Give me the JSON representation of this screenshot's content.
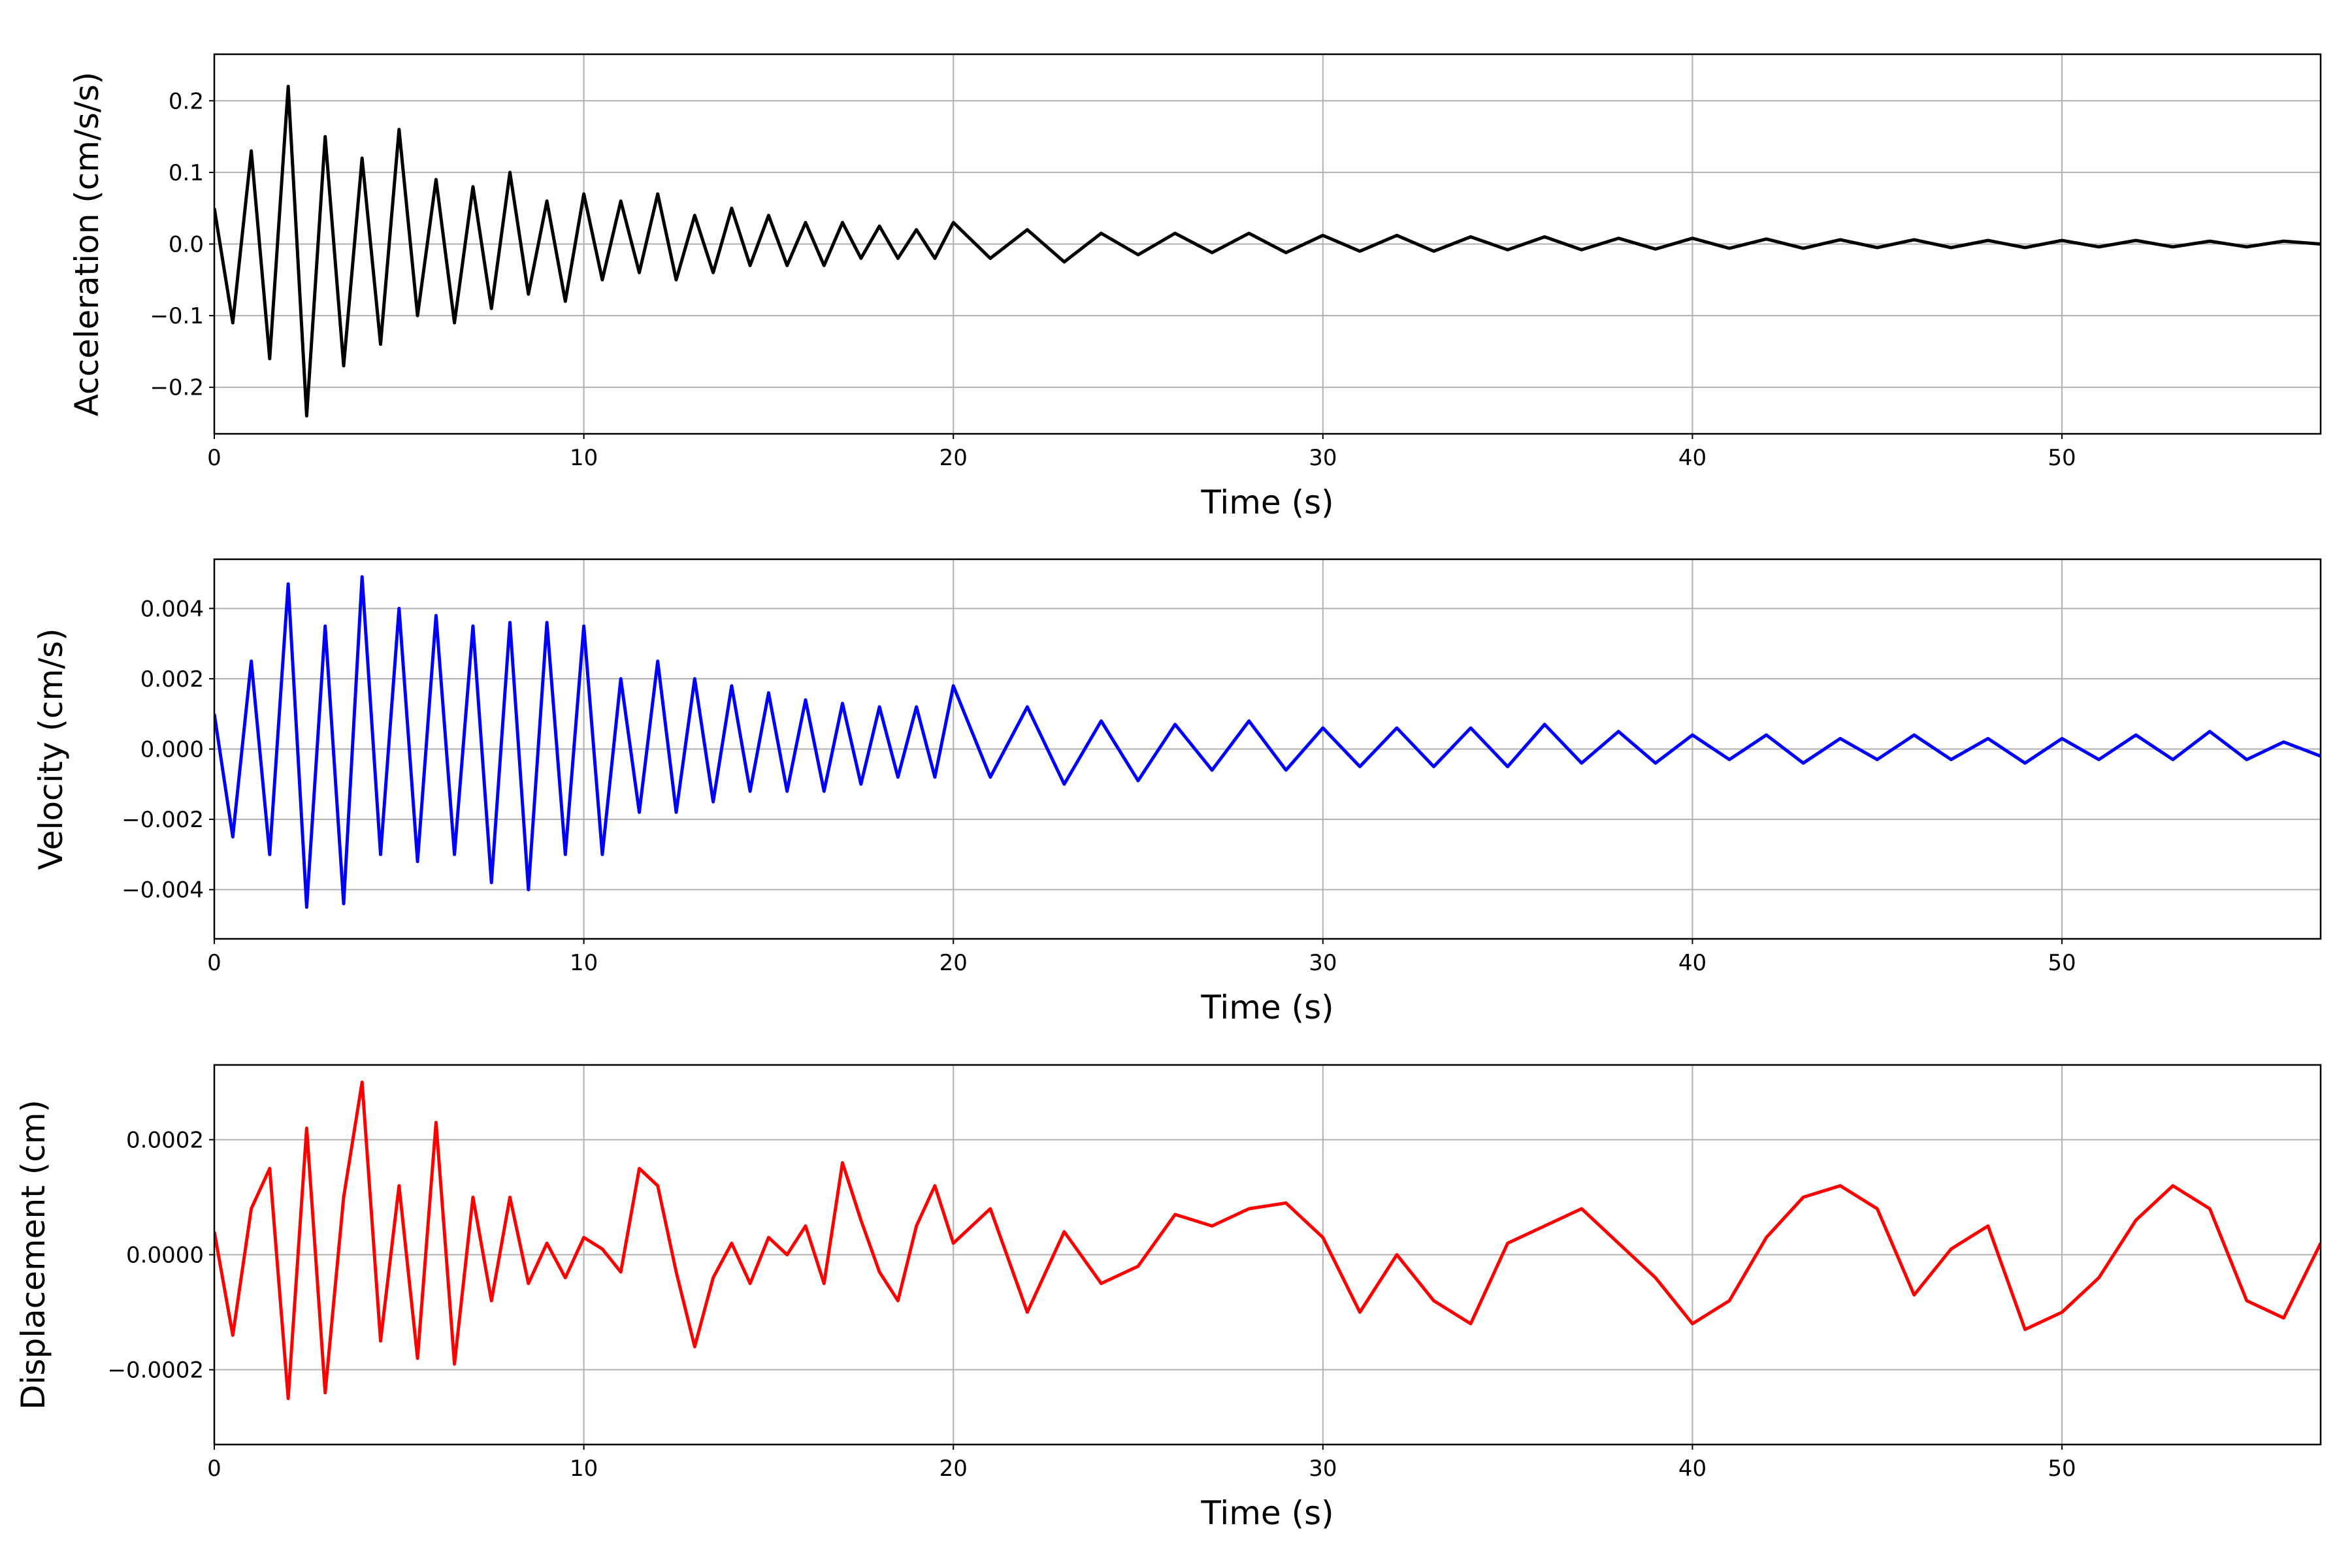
{
  "chart_data": [
    {
      "type": "line",
      "xlabel": "Time (s)",
      "ylabel": "Acceleration (cm/s/s)",
      "color": "#000000",
      "grid": true,
      "x": [
        0,
        0.5,
        1,
        1.5,
        2,
        2.5,
        3,
        3.5,
        4,
        4.5,
        5,
        5.5,
        6,
        6.5,
        7,
        7.5,
        8,
        8.5,
        9,
        9.5,
        10,
        10.5,
        11,
        11.5,
        12,
        12.5,
        13,
        13.5,
        14,
        14.5,
        15,
        15.5,
        16,
        16.5,
        17,
        17.5,
        18,
        18.5,
        19,
        19.5,
        20,
        21,
        22,
        23,
        24,
        25,
        26,
        27,
        28,
        29,
        30,
        31,
        32,
        33,
        34,
        35,
        36,
        37,
        38,
        39,
        40,
        41,
        42,
        43,
        44,
        45,
        46,
        47,
        48,
        49,
        50,
        51,
        52,
        53,
        54,
        55,
        56,
        57
      ],
      "values": [
        0.05,
        -0.11,
        0.13,
        -0.16,
        0.22,
        -0.24,
        0.15,
        -0.17,
        0.12,
        -0.14,
        0.16,
        -0.1,
        0.09,
        -0.11,
        0.08,
        -0.09,
        0.1,
        -0.07,
        0.06,
        -0.08,
        0.07,
        -0.05,
        0.06,
        -0.04,
        0.07,
        -0.05,
        0.04,
        -0.04,
        0.05,
        -0.03,
        0.04,
        -0.03,
        0.03,
        -0.03,
        0.03,
        -0.02,
        0.025,
        -0.02,
        0.02,
        -0.02,
        0.03,
        -0.02,
        0.02,
        -0.025,
        0.015,
        -0.015,
        0.015,
        -0.012,
        0.015,
        -0.012,
        0.012,
        -0.01,
        0.012,
        -0.01,
        0.01,
        -0.008,
        0.01,
        -0.008,
        0.008,
        -0.007,
        0.008,
        -0.006,
        0.007,
        -0.006,
        0.006,
        -0.005,
        0.006,
        -0.005,
        0.005,
        -0.005,
        0.005,
        -0.004,
        0.005,
        -0.004,
        0.004,
        -0.004,
        0.004,
        0
      ],
      "xlim": [
        0,
        57
      ],
      "xticks": [
        0,
        10,
        20,
        30,
        40,
        50
      ],
      "ylim": [
        -0.265,
        0.265
      ],
      "yticks": [
        {
          "value": -0.2,
          "label": "−0.2"
        },
        {
          "value": -0.1,
          "label": "−0.1"
        },
        {
          "value": 0,
          "label": "0.0"
        },
        {
          "value": 0.1,
          "label": "0.1"
        },
        {
          "value": 0.2,
          "label": "0.2"
        }
      ]
    },
    {
      "type": "line",
      "xlabel": "Time (s)",
      "ylabel": "Velocity (cm/s)",
      "color": "#0000ff",
      "grid": true,
      "x": [
        0,
        0.5,
        1,
        1.5,
        2,
        2.5,
        3,
        3.5,
        4,
        4.5,
        5,
        5.5,
        6,
        6.5,
        7,
        7.5,
        8,
        8.5,
        9,
        9.5,
        10,
        10.5,
        11,
        11.5,
        12,
        12.5,
        13,
        13.5,
        14,
        14.5,
        15,
        15.5,
        16,
        16.5,
        17,
        17.5,
        18,
        18.5,
        19,
        19.5,
        20,
        21,
        22,
        23,
        24,
        25,
        26,
        27,
        28,
        29,
        30,
        31,
        32,
        33,
        34,
        35,
        36,
        37,
        38,
        39,
        40,
        41,
        42,
        43,
        44,
        45,
        46,
        47,
        48,
        49,
        50,
        51,
        52,
        53,
        54,
        55,
        56,
        57
      ],
      "values": [
        0.001,
        -0.0025,
        0.0025,
        -0.003,
        0.0047,
        -0.0045,
        0.0035,
        -0.0044,
        0.0049,
        -0.003,
        0.004,
        -0.0032,
        0.0038,
        -0.003,
        0.0035,
        -0.0038,
        0.0036,
        -0.004,
        0.0036,
        -0.003,
        0.0035,
        -0.003,
        0.002,
        -0.0018,
        0.0025,
        -0.0018,
        0.002,
        -0.0015,
        0.0018,
        -0.0012,
        0.0016,
        -0.0012,
        0.0014,
        -0.0012,
        0.0013,
        -0.001,
        0.0012,
        -0.0008,
        0.0012,
        -0.0008,
        0.0018,
        -0.0008,
        0.0012,
        -0.001,
        0.0008,
        -0.0009,
        0.0007,
        -0.0006,
        0.0008,
        -0.0006,
        0.0006,
        -0.0005,
        0.0006,
        -0.0005,
        0.0006,
        -0.0005,
        0.0007,
        -0.0004,
        0.0005,
        -0.0004,
        0.0004,
        -0.0003,
        0.0004,
        -0.0004,
        0.0003,
        -0.0003,
        0.0004,
        -0.0003,
        0.0003,
        -0.0004,
        0.0003,
        -0.0003,
        0.0004,
        -0.0003,
        0.0005,
        -0.0003,
        0.0002,
        -0.0002
      ],
      "xlim": [
        0,
        57
      ],
      "xticks": [
        0,
        10,
        20,
        30,
        40,
        50
      ],
      "ylim": [
        -0.0054,
        0.0054
      ],
      "yticks": [
        {
          "value": -0.004,
          "label": "−0.004"
        },
        {
          "value": -0.002,
          "label": "−0.002"
        },
        {
          "value": 0,
          "label": "0.000"
        },
        {
          "value": 0.002,
          "label": "0.002"
        },
        {
          "value": 0.004,
          "label": "0.004"
        }
      ]
    },
    {
      "type": "line",
      "xlabel": "Time (s)",
      "ylabel": "Displacement (cm)",
      "color": "#ff0000",
      "grid": true,
      "x": [
        0,
        0.5,
        1,
        1.5,
        2,
        2.5,
        3,
        3.5,
        4,
        4.5,
        5,
        5.5,
        6,
        6.5,
        7,
        7.5,
        8,
        8.5,
        9,
        9.5,
        10,
        10.5,
        11,
        11.5,
        12,
        12.5,
        13,
        13.5,
        14,
        14.5,
        15,
        15.5,
        16,
        16.5,
        17,
        17.5,
        18,
        18.5,
        19,
        19.5,
        20,
        21,
        22,
        23,
        24,
        25,
        26,
        27,
        28,
        29,
        30,
        31,
        32,
        33,
        34,
        35,
        36,
        37,
        38,
        39,
        40,
        41,
        42,
        43,
        44,
        45,
        46,
        47,
        48,
        49,
        50,
        51,
        52,
        53,
        54,
        55,
        56,
        57
      ],
      "values": [
        4e-05,
        -0.00014,
        8e-05,
        0.00015,
        -0.00025,
        0.00022,
        -0.00024,
        0.0001,
        0.0003,
        -0.00015,
        0.00012,
        -0.00018,
        0.00023,
        -0.00019,
        0.0001,
        -8e-05,
        0.0001,
        -5e-05,
        2e-05,
        -4e-05,
        3e-05,
        1e-05,
        -3e-05,
        0.00015,
        0.00012,
        -3e-05,
        -0.00016,
        -4e-05,
        2e-05,
        -5e-05,
        3e-05,
        0,
        5e-05,
        -5e-05,
        0.00016,
        6e-05,
        -3e-05,
        -8e-05,
        5e-05,
        0.00012,
        2e-05,
        8e-05,
        -0.0001,
        4e-05,
        -5e-05,
        -2e-05,
        7e-05,
        5e-05,
        8e-05,
        9e-05,
        3e-05,
        -0.0001,
        0,
        -8e-05,
        -0.00012,
        2e-05,
        5e-05,
        8e-05,
        2e-05,
        -4e-05,
        -0.00012,
        -8e-05,
        3e-05,
        0.0001,
        0.00012,
        8e-05,
        -7e-05,
        1e-05,
        5e-05,
        -0.00013,
        -0.0001,
        -4e-05,
        6e-05,
        0.00012,
        8e-05,
        -8e-05,
        -0.00011,
        2e-05
      ],
      "xlim": [
        0,
        57
      ],
      "xticks": [
        0,
        10,
        20,
        30,
        40,
        50
      ],
      "ylim": [
        -0.00033,
        0.00033
      ],
      "yticks": [
        {
          "value": -0.0002,
          "label": "−0.0002"
        },
        {
          "value": 0,
          "label": "0.0000"
        },
        {
          "value": 0.0002,
          "label": "0.0002"
        }
      ]
    }
  ]
}
